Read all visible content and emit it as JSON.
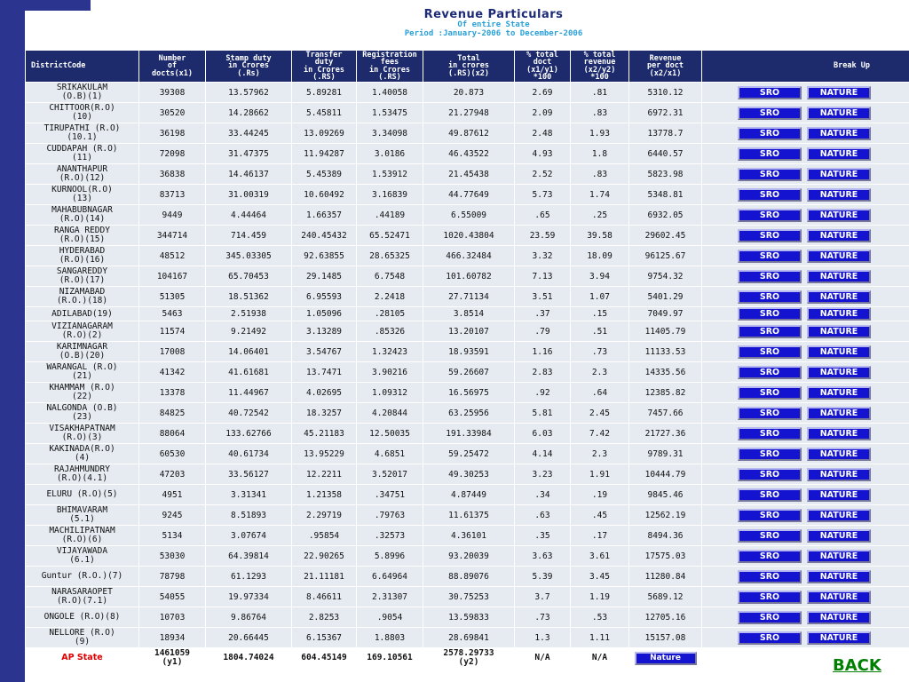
{
  "header": {
    "title": "Revenue Particulars",
    "subtitle": "Of entire State",
    "period": "Period :January-2006 to December-2006"
  },
  "table": {
    "columns": [
      "DistrictCode",
      "Number\nof\ndocts(x1)",
      "Stamp duty\nin Crores\n(.Rs)",
      "Transfer\nduty\nin Crores\n(.RS)",
      "Registration\nfees\nin Crores\n(.RS)",
      "Total\nin crores\n(.RS)(x2)",
      "% total\ndoct\n(x1/y1)\n*100",
      "% total\nrevenue\n(x2/y2)\n*100",
      "Revenue\nper doct\n(x2/x1)",
      "Break Up"
    ],
    "sro_label": "SRO",
    "nature_label": "NATURE",
    "rows": [
      {
        "district": "SRIKAKULAM\n(O.B)(1)",
        "docs": "39308",
        "stamp": "13.57962",
        "transfer": "5.89281",
        "reg": "1.40058",
        "total": "20.873",
        "pct_doct": "2.69",
        "pct_rev": ".81",
        "per_doct": "5310.12"
      },
      {
        "district": "CHITTOOR(R.O)\n(10)",
        "docs": "30520",
        "stamp": "14.28662",
        "transfer": "5.45811",
        "reg": "1.53475",
        "total": "21.27948",
        "pct_doct": "2.09",
        "pct_rev": ".83",
        "per_doct": "6972.31"
      },
      {
        "district": "TIRUPATHI (R.O)\n(10.1)",
        "docs": "36198",
        "stamp": "33.44245",
        "transfer": "13.09269",
        "reg": "3.34098",
        "total": "49.87612",
        "pct_doct": "2.48",
        "pct_rev": "1.93",
        "per_doct": "13778.7"
      },
      {
        "district": "CUDDAPAH (R.O)\n(11)",
        "docs": "72098",
        "stamp": "31.47375",
        "transfer": "11.94287",
        "reg": "3.0186",
        "total": "46.43522",
        "pct_doct": "4.93",
        "pct_rev": "1.8",
        "per_doct": "6440.57"
      },
      {
        "district": "ANANTHAPUR\n(R.O)(12)",
        "docs": "36838",
        "stamp": "14.46137",
        "transfer": "5.45389",
        "reg": "1.53912",
        "total": "21.45438",
        "pct_doct": "2.52",
        "pct_rev": ".83",
        "per_doct": "5823.98"
      },
      {
        "district": "KURNOOL(R.O)\n(13)",
        "docs": "83713",
        "stamp": "31.00319",
        "transfer": "10.60492",
        "reg": "3.16839",
        "total": "44.77649",
        "pct_doct": "5.73",
        "pct_rev": "1.74",
        "per_doct": "5348.81"
      },
      {
        "district": "MAHABUBNAGAR\n(R.O)(14)",
        "docs": "9449",
        "stamp": "4.44464",
        "transfer": "1.66357",
        "reg": ".44189",
        "total": "6.55009",
        "pct_doct": ".65",
        "pct_rev": ".25",
        "per_doct": "6932.05"
      },
      {
        "district": "RANGA REDDY\n(R.O)(15)",
        "docs": "344714",
        "stamp": "714.459",
        "transfer": "240.45432",
        "reg": "65.52471",
        "total": "1020.43804",
        "pct_doct": "23.59",
        "pct_rev": "39.58",
        "per_doct": "29602.45"
      },
      {
        "district": "HYDERABAD\n(R.O)(16)",
        "docs": "48512",
        "stamp": "345.03305",
        "transfer": "92.63855",
        "reg": "28.65325",
        "total": "466.32484",
        "pct_doct": "3.32",
        "pct_rev": "18.09",
        "per_doct": "96125.67"
      },
      {
        "district": "SANGAREDDY\n(R.O)(17)",
        "docs": "104167",
        "stamp": "65.70453",
        "transfer": "29.1485",
        "reg": "6.7548",
        "total": "101.60782",
        "pct_doct": "7.13",
        "pct_rev": "3.94",
        "per_doct": "9754.32"
      },
      {
        "district": "NIZAMABAD\n(R.O.)(18)",
        "docs": "51305",
        "stamp": "18.51362",
        "transfer": "6.95593",
        "reg": "2.2418",
        "total": "27.71134",
        "pct_doct": "3.51",
        "pct_rev": "1.07",
        "per_doct": "5401.29"
      },
      {
        "district": "ADILABAD(19)",
        "docs": "5463",
        "stamp": "2.51938",
        "transfer": "1.05096",
        "reg": ".28105",
        "total": "3.8514",
        "pct_doct": ".37",
        "pct_rev": ".15",
        "per_doct": "7049.97",
        "short": true
      },
      {
        "district": "VIZIANAGARAM\n(R.O)(2)",
        "docs": "11574",
        "stamp": "9.21492",
        "transfer": "3.13289",
        "reg": ".85326",
        "total": "13.20107",
        "pct_doct": ".79",
        "pct_rev": ".51",
        "per_doct": "11405.79"
      },
      {
        "district": "KARIMNAGAR\n(O.B)(20)",
        "docs": "17008",
        "stamp": "14.06401",
        "transfer": "3.54767",
        "reg": "1.32423",
        "total": "18.93591",
        "pct_doct": "1.16",
        "pct_rev": ".73",
        "per_doct": "11133.53"
      },
      {
        "district": "WARANGAL (R.O)\n(21)",
        "docs": "41342",
        "stamp": "41.61681",
        "transfer": "13.7471",
        "reg": "3.90216",
        "total": "59.26607",
        "pct_doct": "2.83",
        "pct_rev": "2.3",
        "per_doct": "14335.56"
      },
      {
        "district": "KHAMMAM (R.O)\n(22)",
        "docs": "13378",
        "stamp": "11.44967",
        "transfer": "4.02695",
        "reg": "1.09312",
        "total": "16.56975",
        "pct_doct": ".92",
        "pct_rev": ".64",
        "per_doct": "12385.82"
      },
      {
        "district": "NALGONDA (O.B)\n(23)",
        "docs": "84825",
        "stamp": "40.72542",
        "transfer": "18.3257",
        "reg": "4.20844",
        "total": "63.25956",
        "pct_doct": "5.81",
        "pct_rev": "2.45",
        "per_doct": "7457.66"
      },
      {
        "district": "VISAKHAPATNAM\n(R.O)(3)",
        "docs": "88064",
        "stamp": "133.62766",
        "transfer": "45.21183",
        "reg": "12.50035",
        "total": "191.33984",
        "pct_doct": "6.03",
        "pct_rev": "7.42",
        "per_doct": "21727.36"
      },
      {
        "district": "KAKINADA(R.O)\n(4)",
        "docs": "60530",
        "stamp": "40.61734",
        "transfer": "13.95229",
        "reg": "4.6851",
        "total": "59.25472",
        "pct_doct": "4.14",
        "pct_rev": "2.3",
        "per_doct": "9789.31"
      },
      {
        "district": "RAJAHMUNDRY\n(R.O)(4.1)",
        "docs": "47203",
        "stamp": "33.56127",
        "transfer": "12.2211",
        "reg": "3.52017",
        "total": "49.30253",
        "pct_doct": "3.23",
        "pct_rev": "1.91",
        "per_doct": "10444.79"
      },
      {
        "district": "ELURU (R.O)(5)",
        "docs": "4951",
        "stamp": "3.31341",
        "transfer": "1.21358",
        "reg": ".34751",
        "total": "4.87449",
        "pct_doct": ".34",
        "pct_rev": ".19",
        "per_doct": "9845.46"
      },
      {
        "district": "BHIMAVARAM\n(5.1)",
        "docs": "9245",
        "stamp": "8.51893",
        "transfer": "2.29719",
        "reg": ".79763",
        "total": "11.61375",
        "pct_doct": ".63",
        "pct_rev": ".45",
        "per_doct": "12562.19"
      },
      {
        "district": "MACHILIPATNAM\n(R.O)(6)",
        "docs": "5134",
        "stamp": "3.07674",
        "transfer": ".95854",
        "reg": ".32573",
        "total": "4.36101",
        "pct_doct": ".35",
        "pct_rev": ".17",
        "per_doct": "8494.36"
      },
      {
        "district": "VIJAYAWADA\n(6.1)",
        "docs": "53030",
        "stamp": "64.39814",
        "transfer": "22.90265",
        "reg": "5.8996",
        "total": "93.20039",
        "pct_doct": "3.63",
        "pct_rev": "3.61",
        "per_doct": "17575.03"
      },
      {
        "district": "Guntur (R.O.)(7)",
        "docs": "78798",
        "stamp": "61.1293",
        "transfer": "21.11181",
        "reg": "6.64964",
        "total": "88.89076",
        "pct_doct": "5.39",
        "pct_rev": "3.45",
        "per_doct": "11280.84"
      },
      {
        "district": "NARASARAOPET\n(R.O)(7.1)",
        "docs": "54055",
        "stamp": "19.97334",
        "transfer": "8.46611",
        "reg": "2.31307",
        "total": "30.75253",
        "pct_doct": "3.7",
        "pct_rev": "1.19",
        "per_doct": "5689.12"
      },
      {
        "district": "ONGOLE (R.O)(8)",
        "docs": "10703",
        "stamp": "9.86764",
        "transfer": "2.8253",
        "reg": ".9054",
        "total": "13.59833",
        "pct_doct": ".73",
        "pct_rev": ".53",
        "per_doct": "12705.16"
      },
      {
        "district": "NELLORE (R.O)\n(9)",
        "docs": "18934",
        "stamp": "20.66445",
        "transfer": "6.15367",
        "reg": "1.8803",
        "total": "28.69841",
        "pct_doct": "1.3",
        "pct_rev": "1.11",
        "per_doct": "15157.08"
      }
    ],
    "total": {
      "state": "AP State",
      "docs": "1461059\n(y1)",
      "stamp": "1804.74024",
      "transfer": "604.45149",
      "reg": "169.10561",
      "total": "2578.29733\n(y2)",
      "pct_doct": "N/A",
      "pct_rev": "N/A",
      "nature_label": "Nature"
    }
  },
  "back_label": "BACK"
}
